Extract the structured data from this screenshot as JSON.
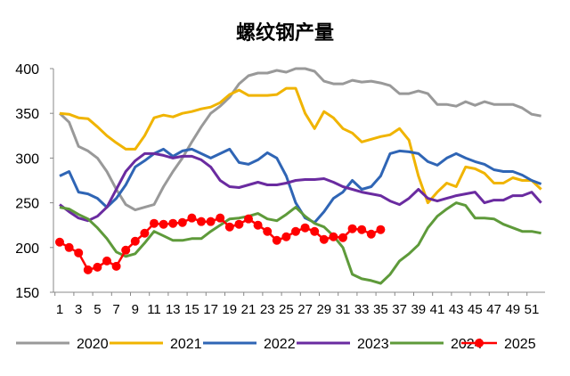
{
  "chart_data": {
    "type": "line",
    "title": "螺纹钢产量",
    "xlabel": "",
    "ylabel": "",
    "ylim": [
      150,
      400
    ],
    "yticks": [
      150,
      200,
      250,
      300,
      350,
      400
    ],
    "xlim": [
      1,
      52
    ],
    "xticks": [
      1,
      3,
      5,
      7,
      9,
      11,
      13,
      15,
      17,
      19,
      21,
      23,
      25,
      27,
      29,
      31,
      33,
      35,
      37,
      39,
      41,
      43,
      45,
      47,
      49,
      51
    ],
    "grid": false,
    "legend": "bottom",
    "series": [
      {
        "name": "2020",
        "color": "#999999",
        "markers": false,
        "values": [
          350,
          340,
          313,
          308,
          300,
          285,
          265,
          248,
          242,
          245,
          248,
          268,
          285,
          300,
          318,
          335,
          350,
          358,
          368,
          383,
          392,
          395,
          395,
          398,
          396,
          400,
          400,
          397,
          386,
          383,
          383,
          387,
          385,
          386,
          384,
          381,
          372,
          372,
          375,
          372,
          360,
          360,
          358,
          363,
          359,
          363,
          360,
          360,
          360,
          356,
          349,
          347
        ]
      },
      {
        "name": "2021",
        "color": "#F0B400",
        "markers": false,
        "values": [
          350,
          349,
          345,
          344,
          335,
          325,
          317,
          310,
          310,
          325,
          345,
          348,
          346,
          350,
          352,
          355,
          357,
          362,
          371,
          376,
          370,
          370,
          370,
          371,
          378,
          378,
          350,
          333,
          352,
          345,
          333,
          328,
          318,
          321,
          324,
          326,
          333,
          320,
          280,
          250,
          262,
          272,
          268,
          290,
          288,
          283,
          272,
          272,
          278,
          275,
          275,
          265
        ]
      },
      {
        "name": "2022",
        "color": "#2F65B5",
        "markers": false,
        "values": [
          280,
          285,
          262,
          260,
          255,
          245,
          255,
          270,
          290,
          297,
          305,
          310,
          302,
          308,
          310,
          305,
          300,
          305,
          310,
          295,
          293,
          298,
          306,
          300,
          280,
          250,
          233,
          228,
          240,
          255,
          262,
          275,
          265,
          268,
          280,
          305,
          308,
          307,
          305,
          296,
          292,
          300,
          305,
          300,
          296,
          293,
          287,
          285,
          285,
          281,
          275,
          271
        ]
      },
      {
        "name": "2023",
        "color": "#6A2BA0",
        "markers": false,
        "values": [
          248,
          240,
          233,
          230,
          235,
          245,
          265,
          285,
          297,
          305,
          305,
          303,
          300,
          302,
          302,
          298,
          290,
          275,
          268,
          267,
          270,
          273,
          270,
          270,
          272,
          275,
          276,
          276,
          277,
          273,
          268,
          265,
          262,
          260,
          258,
          252,
          248,
          255,
          265,
          255,
          252,
          255,
          258,
          260,
          262,
          250,
          253,
          253,
          258,
          258,
          262,
          250
        ]
      },
      {
        "name": "2024",
        "color": "#5E9A3A",
        "markers": false,
        "values": [
          245,
          243,
          237,
          232,
          222,
          210,
          195,
          190,
          193,
          205,
          218,
          213,
          208,
          208,
          210,
          210,
          218,
          225,
          232,
          233,
          235,
          238,
          232,
          230,
          237,
          245,
          235,
          227,
          223,
          213,
          200,
          170,
          165,
          163,
          160,
          170,
          185,
          193,
          203,
          222,
          235,
          243,
          250,
          247,
          233,
          233,
          232,
          226,
          222,
          218,
          218,
          216
        ]
      },
      {
        "name": "2025",
        "color": "#FF0000",
        "markers": true,
        "values": [
          206,
          200,
          194,
          175,
          178,
          185,
          179,
          197,
          207,
          216,
          227,
          226,
          227,
          228,
          233,
          229,
          229,
          233,
          223,
          226,
          232,
          225,
          218,
          208,
          212,
          218,
          222,
          218,
          209,
          212,
          211,
          221,
          220,
          215,
          220
        ]
      }
    ]
  }
}
